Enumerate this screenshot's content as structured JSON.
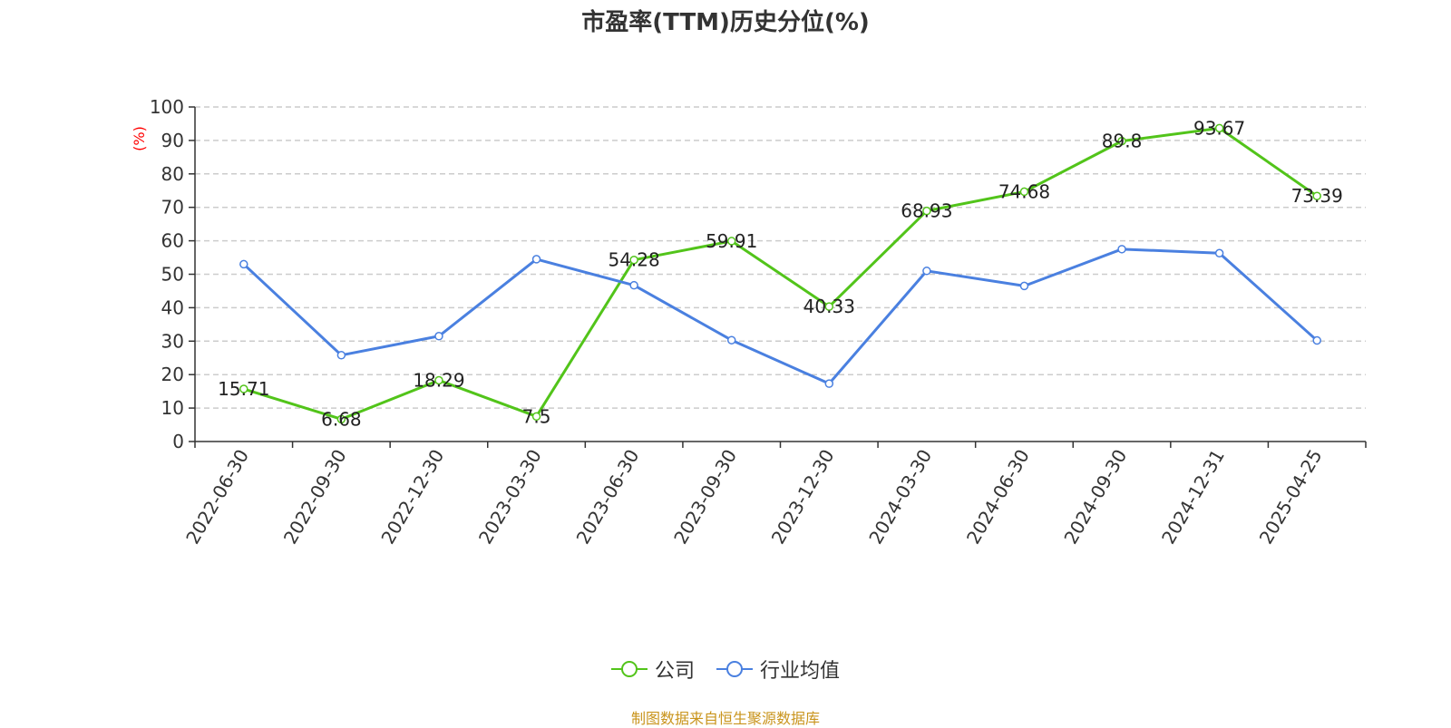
{
  "chart_data": {
    "type": "line",
    "title": "市盈率(TTM)历史分位(%)",
    "ylabel": "(%)",
    "xlabel": "",
    "ylim": [
      0,
      100
    ],
    "yticks": [
      0,
      10,
      20,
      30,
      40,
      50,
      60,
      70,
      80,
      90,
      100
    ],
    "categories": [
      "2022-06-30",
      "2022-09-30",
      "2022-12-30",
      "2023-03-30",
      "2023-06-30",
      "2023-09-30",
      "2023-12-30",
      "2024-03-30",
      "2024-06-30",
      "2024-09-30",
      "2024-12-31",
      "2025-04-25"
    ],
    "series": [
      {
        "name": "公司",
        "color": "#52c41a",
        "values": [
          15.71,
          6.68,
          18.29,
          7.5,
          54.28,
          59.91,
          40.33,
          68.93,
          74.68,
          89.8,
          93.67,
          73.39
        ],
        "labels": [
          "15.71",
          "6.68",
          "18.29",
          "7.5",
          "54.28",
          "59.91",
          "40.33",
          "68.93",
          "74.68",
          "89.8",
          "93.67",
          "73.39"
        ]
      },
      {
        "name": "行业均值",
        "color": "#4a80e0",
        "values": [
          53.0,
          25.8,
          31.5,
          54.5,
          46.7,
          30.3,
          17.3,
          51.0,
          46.5,
          57.5,
          56.3,
          30.2
        ]
      }
    ],
    "grid": true,
    "legend_position": "bottom-center",
    "source": "制图数据来自恒生聚源数据库",
    "source_color": "#c9941c",
    "ylabel_color": "#ff0000"
  }
}
